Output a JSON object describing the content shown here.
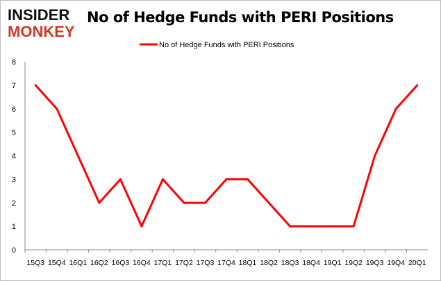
{
  "logo": {
    "line1": "INSIDER",
    "line2": "MONKEY",
    "colors": {
      "line1": "#111111",
      "line2": "#d0392b"
    }
  },
  "chart_data": {
    "type": "line",
    "title": "No of Hedge Funds with PERI Positions",
    "xlabel": "",
    "ylabel": "",
    "categories": [
      "15Q3",
      "15Q4",
      "16Q1",
      "16Q2",
      "16Q3",
      "16Q4",
      "17Q1",
      "17Q2",
      "17Q3",
      "17Q4",
      "18Q1",
      "18Q2",
      "18Q3",
      "18Q4",
      "19Q1",
      "19Q2",
      "19Q3",
      "19Q4",
      "20Q1"
    ],
    "series": [
      {
        "name": "No of Hedge Funds with PERI Positions",
        "values": [
          7,
          6,
          4,
          2,
          3,
          1,
          3,
          2,
          2,
          3,
          3,
          2,
          1,
          1,
          1,
          1,
          4,
          6,
          7
        ],
        "color": "#ff0000"
      }
    ],
    "ylim": [
      0,
      8
    ],
    "yticks": [
      0,
      1,
      2,
      3,
      4,
      5,
      6,
      7,
      8
    ],
    "grid": false,
    "legend": "top-center"
  }
}
